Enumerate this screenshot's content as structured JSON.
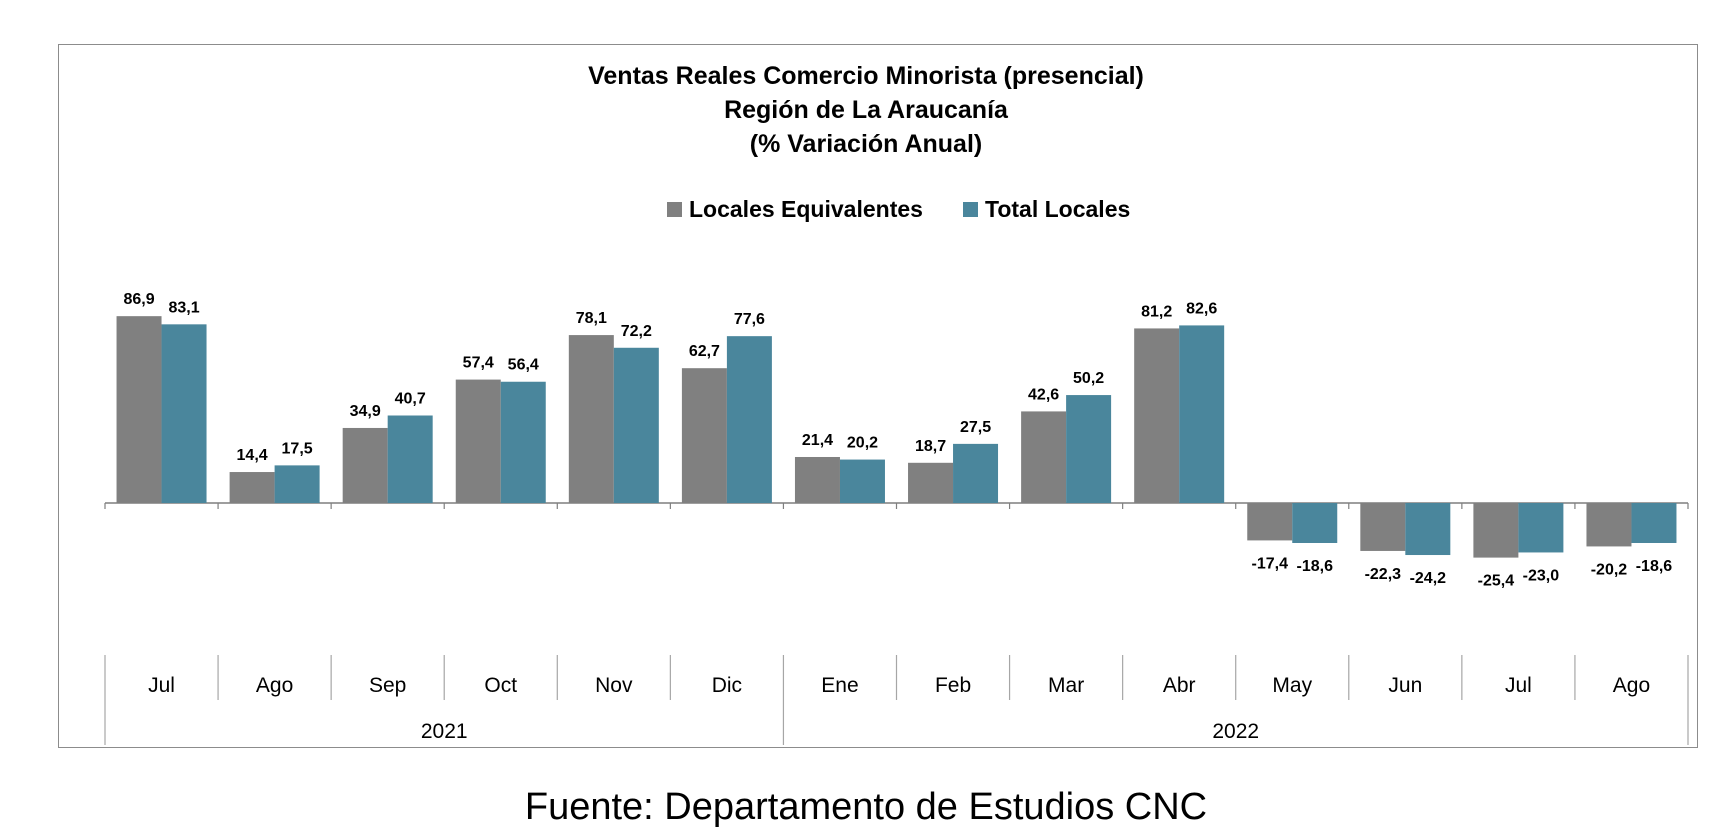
{
  "chart_data": {
    "type": "bar",
    "title": [
      "Ventas Reales Comercio Minorista (presencial)",
      "Región de La Araucanía",
      "(% Variación Anual)"
    ],
    "categories": [
      "Jul",
      "Ago",
      "Sep",
      "Oct",
      "Nov",
      "Dic",
      "Ene",
      "Feb",
      "Mar",
      "Abr",
      "May",
      "Jun",
      "Jul",
      "Ago"
    ],
    "year_groups": [
      {
        "label": "2021",
        "count": 6
      },
      {
        "label": "2022",
        "count": 8
      }
    ],
    "series": [
      {
        "name": "Locales Equivalentes",
        "color": "#808080",
        "values": [
          86.9,
          14.4,
          34.9,
          57.4,
          78.1,
          62.7,
          21.4,
          18.7,
          42.6,
          81.2,
          -17.4,
          -22.3,
          -25.4,
          -20.2
        ],
        "labels": [
          "86,9",
          "14,4",
          "34,9",
          "57,4",
          "78,1",
          "62,7",
          "21,4",
          "18,7",
          "42,6",
          "81,2",
          "-17,4",
          "-22,3",
          "-25,4",
          "-20,2"
        ]
      },
      {
        "name": "Total Locales",
        "color": "#4a869c",
        "values": [
          83.1,
          17.5,
          40.7,
          56.4,
          72.2,
          77.6,
          20.2,
          27.5,
          50.2,
          82.6,
          -18.6,
          -24.2,
          -23.0,
          -18.6
        ],
        "labels": [
          "83,1",
          "17,5",
          "40,7",
          "56,4",
          "72,2",
          "77,6",
          "20,2",
          "27,5",
          "50,2",
          "82,6",
          "-18,6",
          "-24,2",
          "-23,0",
          "-18,6"
        ]
      }
    ],
    "legend_position": "top-center",
    "grid": false
  },
  "source": "Fuente: Departamento de Estudios CNC"
}
